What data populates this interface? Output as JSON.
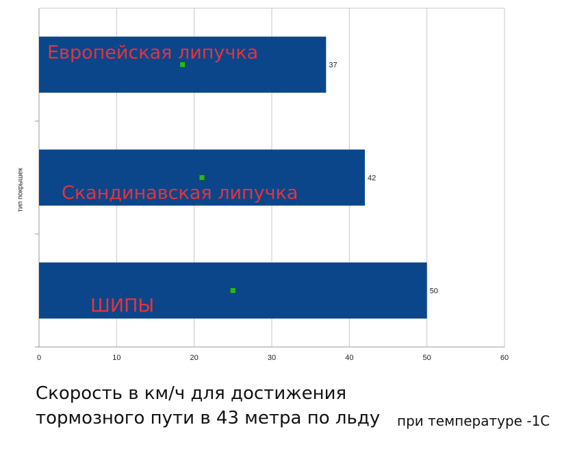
{
  "chart_data": {
    "type": "bar",
    "orientation": "horizontal",
    "categories": [
      "Европейская липучка",
      "Скандинавская липучка",
      "ШИПЫ"
    ],
    "values": [
      37,
      42,
      50
    ],
    "data_labels": [
      "37",
      "42",
      "50"
    ],
    "xlim": [
      0,
      60
    ],
    "x_ticks": [
      "0",
      "10",
      "20",
      "30",
      "40",
      "50",
      "60"
    ],
    "ylabel": "тип покрышек",
    "grid": "vertical",
    "bar_color": "#0b468b",
    "category_label_color": "#e8323a",
    "marker_color": "#2ab42a"
  },
  "caption": {
    "line1": "Скорость в км/ч для достижения",
    "line2": "тормозного пути в 43 метра по льду",
    "note": "при температуре -1С"
  }
}
